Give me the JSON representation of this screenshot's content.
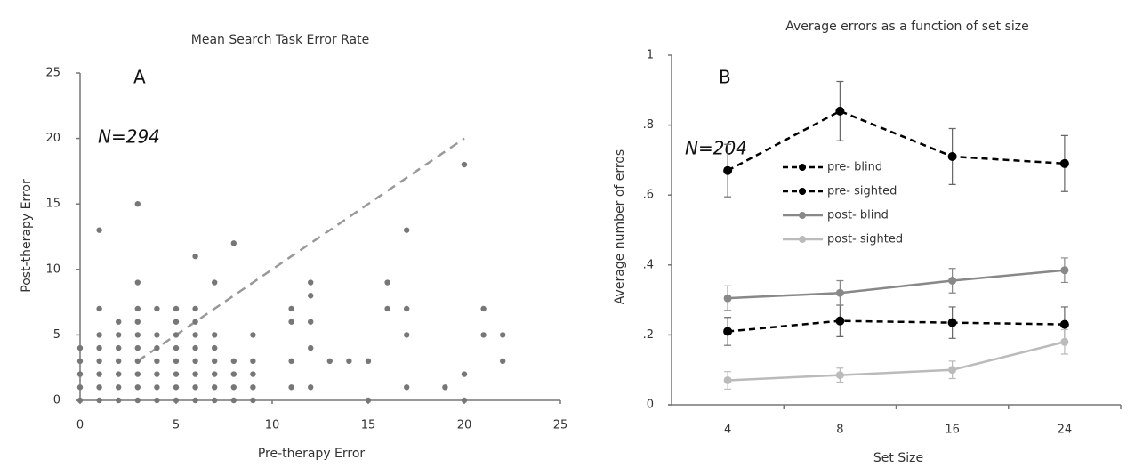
{
  "chart_data": [
    {
      "type": "scatter",
      "title": "Mean Search Task Error Rate",
      "panel": "A",
      "annotation": "N=294",
      "x_label": "Pre-therapy Error",
      "y_label": "Post-therapy Error",
      "xlim": [
        0,
        25
      ],
      "ylim": [
        0,
        25
      ],
      "xticks": [
        0,
        5,
        10,
        15,
        20,
        25
      ],
      "yticks": [
        0,
        5,
        10,
        15,
        20,
        25
      ],
      "color": "#777777",
      "x": [
        0,
        0,
        0,
        0,
        0,
        1,
        1,
        1,
        1,
        1,
        1,
        1,
        1,
        2,
        2,
        2,
        2,
        2,
        2,
        2,
        3,
        3,
        3,
        3,
        3,
        3,
        3,
        3,
        3,
        3,
        4,
        4,
        4,
        4,
        4,
        4,
        4,
        5,
        5,
        5,
        5,
        5,
        5,
        5,
        5,
        6,
        6,
        6,
        6,
        6,
        6,
        6,
        6,
        6,
        7,
        7,
        7,
        7,
        7,
        7,
        7,
        8,
        8,
        8,
        8,
        8,
        9,
        9,
        9,
        9,
        9,
        11,
        11,
        11,
        11,
        12,
        12,
        12,
        12,
        12,
        13,
        14,
        15,
        15,
        16,
        16,
        17,
        17,
        17,
        17,
        19,
        20,
        20,
        20,
        21,
        21,
        22,
        22
      ],
      "y": [
        0,
        1,
        2,
        3,
        4,
        0,
        1,
        2,
        3,
        4,
        5,
        7,
        13,
        0,
        1,
        2,
        3,
        4,
        5,
        6,
        0,
        1,
        2,
        3,
        4,
        5,
        6,
        7,
        9,
        15,
        0,
        1,
        2,
        3,
        4,
        5,
        7,
        0,
        1,
        2,
        3,
        4,
        5,
        6,
        7,
        0,
        1,
        2,
        3,
        4,
        5,
        6,
        7,
        11,
        0,
        1,
        2,
        3,
        4,
        5,
        9,
        0,
        1,
        2,
        3,
        12,
        0,
        1,
        2,
        3,
        5,
        1,
        3,
        6,
        7,
        1,
        4,
        6,
        8,
        9,
        3,
        3,
        0,
        3,
        7,
        9,
        1,
        5,
        7,
        13,
        1,
        0,
        2,
        18,
        5,
        7,
        3,
        5
      ],
      "reference_line": {
        "x": [
          3,
          20
        ],
        "y": [
          3,
          20
        ],
        "color": "#999999"
      }
    },
    {
      "type": "line",
      "title": "Average errors as a function of set size",
      "panel": "B",
      "annotation": "N=204",
      "x_label": "Set Size",
      "y_label": "Average number of erros",
      "categories": [
        "4",
        "8",
        "16",
        "24"
      ],
      "ylim": [
        0,
        1
      ],
      "yticks": [
        0,
        {
          "value": 0.2,
          "label": ".2"
        },
        {
          "value": 0.4,
          "label": ".4"
        },
        {
          "value": 0.6,
          "label": ".6"
        },
        {
          "value": 0.8,
          "label": ".8"
        },
        1
      ],
      "series": [
        {
          "name": "pre- blind",
          "color": "#000000",
          "dashed": true,
          "values": [
            0.67,
            0.84,
            0.71,
            0.69
          ],
          "errors": [
            0.075,
            0.085,
            0.08,
            0.08
          ]
        },
        {
          "name": "pre- sighted",
          "color": "#000000",
          "dashed": true,
          "values": [
            0.21,
            0.24,
            0.235,
            0.23
          ],
          "errors": [
            0.04,
            0.045,
            0.045,
            0.05
          ]
        },
        {
          "name": "post- blind",
          "color": "#888888",
          "dashed": false,
          "values": [
            0.305,
            0.32,
            0.355,
            0.385
          ],
          "errors": [
            0.035,
            0.035,
            0.035,
            0.035
          ]
        },
        {
          "name": "post- sighted",
          "color": "#bbbbbb",
          "dashed": false,
          "values": [
            0.07,
            0.085,
            0.1,
            0.18
          ],
          "errors": [
            0.025,
            0.02,
            0.025,
            0.035
          ]
        }
      ]
    }
  ]
}
